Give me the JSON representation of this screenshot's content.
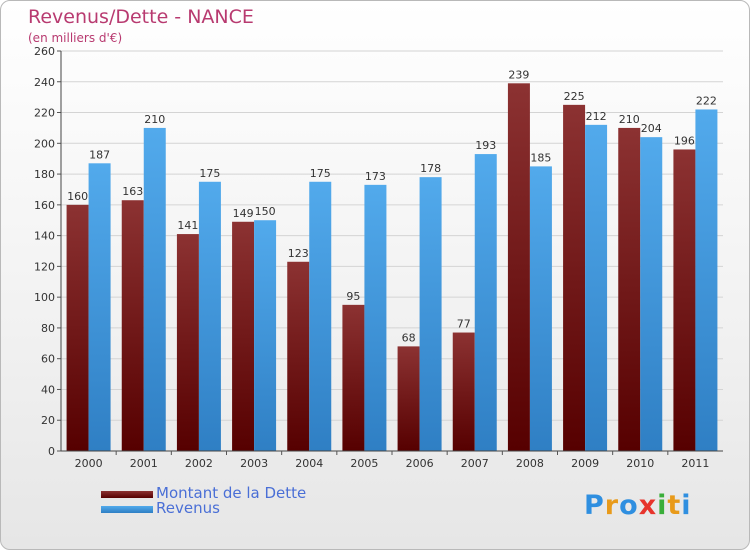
{
  "chart_data": {
    "type": "bar",
    "title": "Revenus/Dette - NANCE",
    "subtitle": "(en milliers d'€)",
    "categories": [
      "2000",
      "2001",
      "2002",
      "2003",
      "2004",
      "2005",
      "2006",
      "2007",
      "2008",
      "2009",
      "2010",
      "2011"
    ],
    "series": [
      {
        "name": "Montant de la Dette",
        "color": "#8b1a1a",
        "values": [
          160,
          163,
          141,
          149,
          123,
          95,
          68,
          77,
          239,
          225,
          210,
          196
        ]
      },
      {
        "name": "Revenus",
        "color": "#3f9fe6",
        "values": [
          187,
          210,
          175,
          150,
          175,
          173,
          178,
          193,
          185,
          212,
          204,
          222
        ]
      }
    ],
    "ylim": [
      0,
      260
    ],
    "yticks": [
      0,
      20,
      40,
      60,
      80,
      100,
      120,
      140,
      160,
      180,
      200,
      220,
      240,
      260
    ],
    "grid": true,
    "legend_position": "bottom-left",
    "data_labels": true
  },
  "logo": {
    "text": "Proxiti",
    "letter_colors": [
      "#2f8fe0",
      "#e89a1a",
      "#2f8fe0",
      "#e7342c",
      "#3aae3a",
      "#e89a1a",
      "#2f8fe0"
    ]
  }
}
